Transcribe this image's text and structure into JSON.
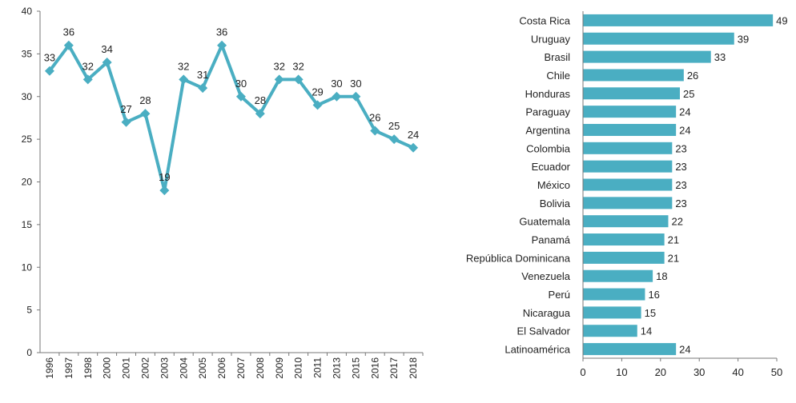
{
  "chart_data": [
    {
      "type": "line",
      "categories": [
        "1996",
        "1997",
        "1998",
        "2000",
        "2001",
        "2002",
        "2003",
        "2004",
        "2005",
        "2006",
        "2007",
        "2008",
        "2009",
        "2010",
        "2011",
        "2013",
        "2015",
        "2016",
        "2017",
        "2018"
      ],
      "values": [
        33,
        36,
        32,
        34,
        27,
        28,
        19,
        32,
        31,
        36,
        30,
        28,
        32,
        32,
        29,
        30,
        30,
        26,
        25,
        24
      ],
      "title": "",
      "xlabel": "",
      "ylabel": "",
      "ylim": [
        0,
        40
      ],
      "yticks": [
        "0",
        "5",
        "10",
        "15",
        "20",
        "25",
        "30",
        "35",
        "40"
      ],
      "grid": false,
      "color": "#4aaec2"
    },
    {
      "type": "bar",
      "orientation": "horizontal",
      "categories": [
        "Costa Rica",
        "Uruguay",
        "Brasil",
        "Chile",
        "Honduras",
        "Paraguay",
        "Argentina",
        "Colombia",
        "Ecuador",
        "México",
        "Bolivia",
        "Guatemala",
        "Panamá",
        "República Dominicana",
        "Venezuela",
        "Perú",
        "Nicaragua",
        "El Salvador",
        "Latinoamérica"
      ],
      "values": [
        49,
        39,
        33,
        26,
        25,
        24,
        24,
        23,
        23,
        23,
        23,
        22,
        21,
        21,
        18,
        16,
        15,
        14,
        24
      ],
      "title": "",
      "xlabel": "",
      "ylabel": "",
      "xlim": [
        0,
        50
      ],
      "xticks": [
        "0",
        "10",
        "20",
        "30",
        "40",
        "50"
      ],
      "grid": false,
      "color": "#4aaec2"
    }
  ]
}
